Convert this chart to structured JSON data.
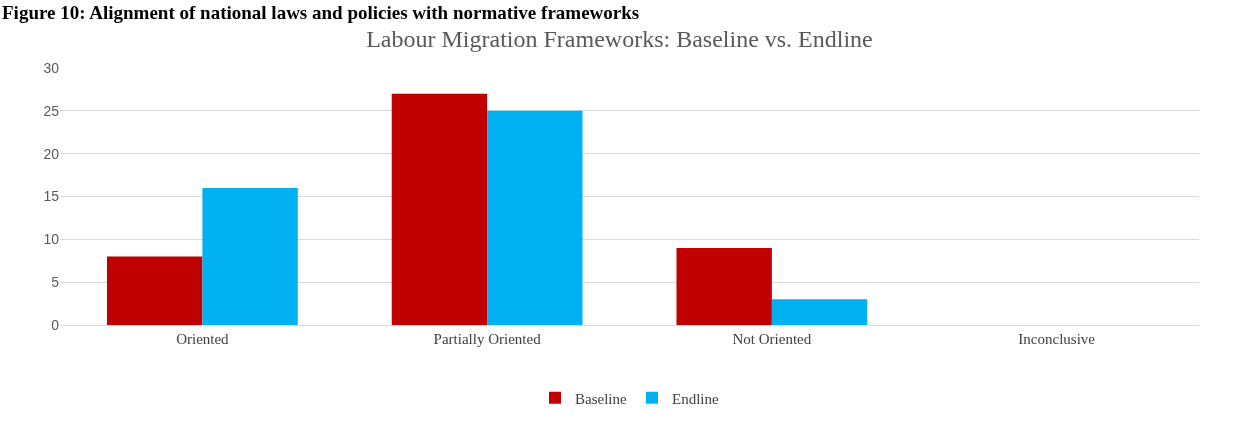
{
  "chart_data": {
    "type": "bar",
    "title": "Labour Migration Frameworks: Baseline vs. Endline",
    "annotations": [
      "Figure 10: Alignment of national laws and policies with normative frameworks"
    ],
    "categories": [
      "Oriented",
      "Partially Oriented",
      "Not Oriented",
      "Inconclusive"
    ],
    "series": [
      {
        "name": "Baseline",
        "color": "#c00000",
        "values": [
          8,
          27,
          9,
          0
        ]
      },
      {
        "name": "Endline",
        "color": "#00b0f0",
        "values": [
          16,
          25,
          3,
          0
        ]
      }
    ],
    "ylim": [
      0,
      30
    ],
    "yticks": [
      0,
      5,
      10,
      15,
      20,
      25,
      30
    ],
    "grid": "y",
    "legend": "bottom"
  }
}
